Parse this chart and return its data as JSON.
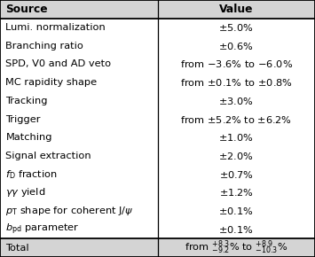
{
  "col_headers": [
    "Source",
    "Value"
  ],
  "rows": [
    [
      "Lumi. normalization",
      "$\\pm5.0\\%$"
    ],
    [
      "Branching ratio",
      "$\\pm0.6\\%$"
    ],
    [
      "SPD, V0 and AD veto",
      "from $-3.6\\%$ to $-6.0\\%$"
    ],
    [
      "MC rapidity shape",
      "from $\\pm0.1\\%$ to $\\pm0.8\\%$"
    ],
    [
      "Tracking",
      "$\\pm3.0\\%$"
    ],
    [
      "Trigger",
      "from $\\pm5.2\\%$ to $\\pm6.2\\%$"
    ],
    [
      "Matching",
      "$\\pm1.0\\%$"
    ],
    [
      "Signal extraction",
      "$\\pm2.0\\%$"
    ],
    [
      "$f_{\\mathrm{D}}$ fraction",
      "$\\pm0.7\\%$"
    ],
    [
      "$\\gamma\\gamma$ yield",
      "$\\pm1.2\\%$"
    ],
    [
      "$p_{\\mathrm{T}}$ shape for coherent J/$\\psi$",
      "$\\pm0.1\\%$"
    ],
    [
      "$b_{\\mathrm{pd}}$ parameter",
      "$\\pm0.1\\%$"
    ]
  ],
  "total_row": [
    "Total",
    "from $^{+8.3}_{-9.2}\\%$ to $^{+8.9}_{-10.3}\\%$"
  ],
  "col_split": 0.5,
  "header_bg": "#d4d4d4",
  "total_bg": "#d4d4d4",
  "row_bg": "#ffffff",
  "border_color": "#000000",
  "fontsize": 8.2,
  "header_fontsize": 8.8
}
